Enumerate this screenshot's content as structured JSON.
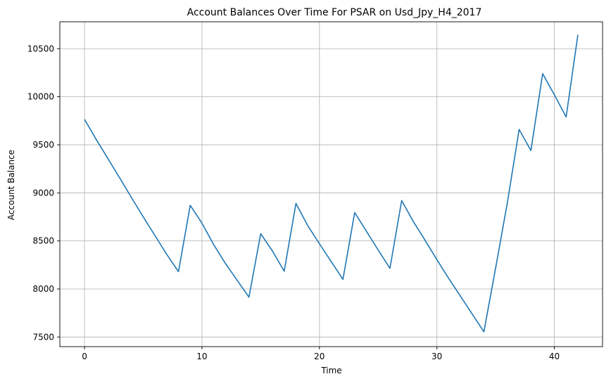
{
  "chart_data": {
    "type": "line",
    "title": "Account Balances Over Time For PSAR on Usd_Jpy_H4_2017",
    "xlabel": "Time",
    "ylabel": "Account Balance",
    "xlim": [
      -2.1,
      44.1
    ],
    "ylim": [
      7400,
      10780
    ],
    "x_ticks": [
      0,
      10,
      20,
      30,
      40
    ],
    "y_ticks": [
      7500,
      8000,
      8500,
      9000,
      9500,
      10000,
      10500
    ],
    "grid": true,
    "line_color": "#1f77b4",
    "grid_color": "#b0b0b0",
    "series": [
      {
        "x": [
          0,
          1,
          2,
          3,
          4,
          5,
          6,
          7,
          8,
          9,
          10,
          11,
          12,
          13,
          14,
          15,
          16,
          17,
          18,
          19,
          20,
          21,
          22,
          23,
          24,
          25,
          26,
          27,
          28,
          29,
          30,
          31,
          32,
          33,
          34,
          35,
          36,
          37,
          38,
          39,
          40,
          41,
          42
        ],
        "values": [
          9765,
          9555,
          9355,
          9155,
          8950,
          8750,
          8555,
          8360,
          8180,
          8870,
          8685,
          8460,
          8265,
          8090,
          7915,
          8575,
          8395,
          8185,
          8890,
          8660,
          8470,
          8285,
          8100,
          8795,
          8600,
          8405,
          8215,
          8920,
          8700,
          8505,
          8305,
          8110,
          7925,
          7740,
          7555,
          8220,
          8900,
          9660,
          9440,
          10240,
          10020,
          9790,
          10645
        ]
      }
    ]
  }
}
